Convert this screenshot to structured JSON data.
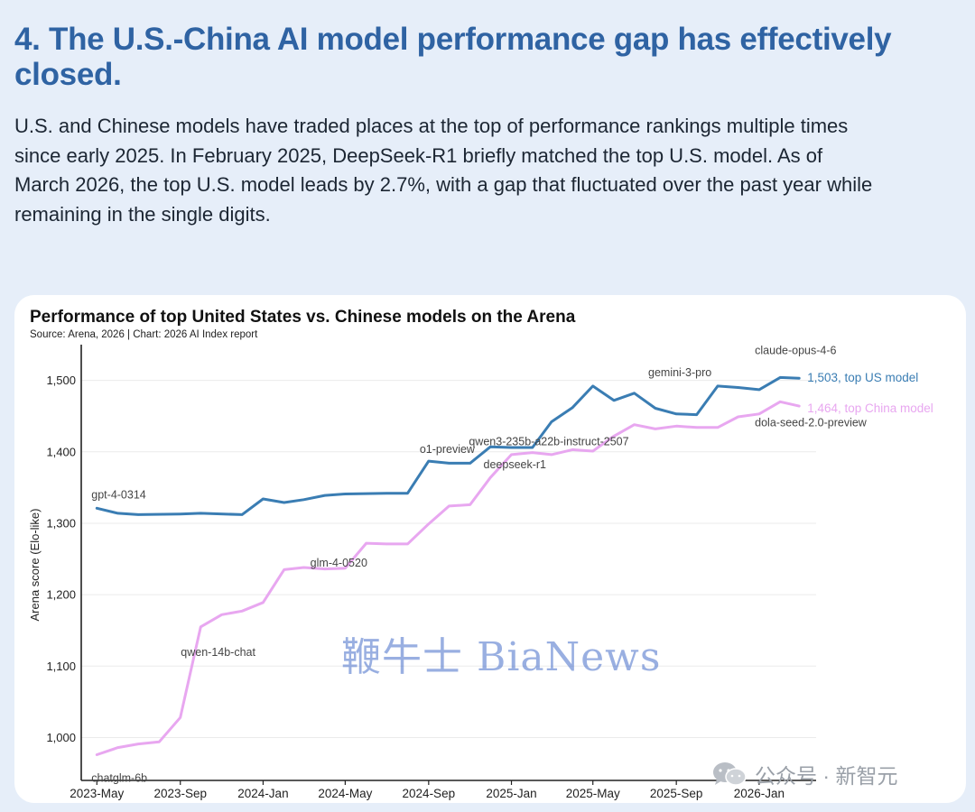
{
  "heading": "4. The U.S.-China AI model performance gap has effectively closed.",
  "intro": "U.S. and Chinese models have traded places at the top of performance rankings multiple times since early 2025. In February 2025, DeepSeek-R1 briefly matched the top U.S. model. As of March 2026, the top U.S. model leads by 2.7%, with a gap that fluctuated over the past  year while remaining in the single digits.",
  "watermark": "鞭牛士 BiaNews",
  "account": {
    "icon": "wechat-icon",
    "text": "公众号 · 新智元"
  },
  "colors": {
    "us": "#3a7db3",
    "china": "#e8a7f0",
    "heading": "#2f63a3"
  },
  "chart_data": {
    "type": "line",
    "title": "Performance of top United States vs. Chinese models on the Arena",
    "subtitle": "Source: Arena, 2026 | Chart: 2026 AI Index report",
    "ylabel": "Arena score (Elo-like)",
    "xlabel": "",
    "ylim": [
      940,
      1550
    ],
    "yticks": [
      1000,
      1100,
      1200,
      1300,
      1400,
      1500
    ],
    "ytick_labels": [
      "1,000",
      "1,100",
      "1,200",
      "1,300",
      "1,400",
      "1,500"
    ],
    "xlim": [
      "2023-05",
      "2026-03"
    ],
    "xticks": [
      "2023-05",
      "2023-09",
      "2024-01",
      "2024-05",
      "2024-09",
      "2025-01",
      "2025-05",
      "2025-09",
      "2026-01"
    ],
    "xtick_labels": [
      "2023-May",
      "2023-Sep",
      "2024-Jan",
      "2024-May",
      "2024-Sep",
      "2025-Jan",
      "2025-May",
      "2025-Sep",
      "2026-Jan"
    ],
    "grid": "horizontal",
    "legend": "none (end labels)",
    "series": [
      {
        "name": "top US model",
        "color": "#3a7db3",
        "points": [
          [
            "2023-05-01",
            1321
          ],
          [
            "2023-06-01",
            1314
          ],
          [
            "2023-07-01",
            1312
          ],
          [
            "2023-09-01",
            1313
          ],
          [
            "2023-10-01",
            1314
          ],
          [
            "2023-12-01",
            1312
          ],
          [
            "2024-01-01",
            1334
          ],
          [
            "2024-02-01",
            1329
          ],
          [
            "2024-03-01",
            1333
          ],
          [
            "2024-04-01",
            1339
          ],
          [
            "2024-05-01",
            1341
          ],
          [
            "2024-07-01",
            1342
          ],
          [
            "2024-08-01",
            1342
          ],
          [
            "2024-09-01",
            1387
          ],
          [
            "2024-10-01",
            1384
          ],
          [
            "2024-11-01",
            1384
          ],
          [
            "2024-12-01",
            1407
          ],
          [
            "2025-01-01",
            1406
          ],
          [
            "2025-02-01",
            1406
          ],
          [
            "2025-03-01",
            1442
          ],
          [
            "2025-04-01",
            1462
          ],
          [
            "2025-05-01",
            1492
          ],
          [
            "2025-06-01",
            1472
          ],
          [
            "2025-07-01",
            1482
          ],
          [
            "2025-08-01",
            1461
          ],
          [
            "2025-09-01",
            1453
          ],
          [
            "2025-10-01",
            1452
          ],
          [
            "2025-11-01",
            1492
          ],
          [
            "2025-12-01",
            1490
          ],
          [
            "2026-01-01",
            1487
          ],
          [
            "2026-02-01",
            1504
          ],
          [
            "2026-03-01",
            1503
          ]
        ],
        "end_label": "1,503, top US model"
      },
      {
        "name": "top China model",
        "color": "#e8a7f0",
        "points": [
          [
            "2023-05-01",
            976
          ],
          [
            "2023-06-01",
            986
          ],
          [
            "2023-07-01",
            991
          ],
          [
            "2023-08-01",
            994
          ],
          [
            "2023-09-01",
            1028
          ],
          [
            "2023-10-01",
            1155
          ],
          [
            "2023-11-01",
            1172
          ],
          [
            "2023-12-01",
            1177
          ],
          [
            "2024-01-01",
            1189
          ],
          [
            "2024-02-01",
            1235
          ],
          [
            "2024-03-01",
            1238
          ],
          [
            "2024-04-01",
            1236
          ],
          [
            "2024-05-01",
            1237
          ],
          [
            "2024-06-01",
            1272
          ],
          [
            "2024-07-01",
            1271
          ],
          [
            "2024-08-01",
            1271
          ],
          [
            "2024-09-01",
            1299
          ],
          [
            "2024-10-01",
            1324
          ],
          [
            "2024-11-01",
            1326
          ],
          [
            "2024-12-01",
            1364
          ],
          [
            "2025-01-01",
            1396
          ],
          [
            "2025-02-01",
            1399
          ],
          [
            "2025-03-01",
            1396
          ],
          [
            "2025-04-01",
            1403
          ],
          [
            "2025-05-01",
            1401
          ],
          [
            "2025-06-01",
            1422
          ],
          [
            "2025-07-01",
            1438
          ],
          [
            "2025-08-01",
            1432
          ],
          [
            "2025-09-01",
            1436
          ],
          [
            "2025-10-01",
            1434
          ],
          [
            "2025-11-01",
            1434
          ],
          [
            "2025-12-01",
            1449
          ],
          [
            "2026-01-01",
            1453
          ],
          [
            "2026-02-01",
            1470
          ],
          [
            "2026-03-01",
            1464
          ]
        ],
        "end_label": "1,464, top China model"
      }
    ],
    "annotations": [
      {
        "text": "gpt-4-0314",
        "series": "top US model",
        "date": "2023-05-01"
      },
      {
        "text": "o1-preview",
        "series": "top US model",
        "date": "2024-09-01"
      },
      {
        "text": "gemini-3-pro",
        "series": "top US model",
        "date": "2025-11-01"
      },
      {
        "text": "claude-opus-4-6",
        "series": "top US model",
        "date": "2026-02-01"
      },
      {
        "text": "chatglm-6b",
        "series": "top China model",
        "date": "2023-05-01"
      },
      {
        "text": "qwen-14b-chat",
        "series": "top China model",
        "date": "2023-10-01"
      },
      {
        "text": "glm-4-0520",
        "series": "top China model",
        "date": "2024-06-01"
      },
      {
        "text": "deepseek-r1",
        "series": "top China model",
        "date": "2025-01-01"
      },
      {
        "text": "qwen3-235b-a22b-instruct-2507",
        "series": "top China model",
        "date": "2025-07-01"
      },
      {
        "text": "dola-seed-2.0-preview",
        "series": "top China model",
        "date": "2026-02-01"
      }
    ]
  }
}
